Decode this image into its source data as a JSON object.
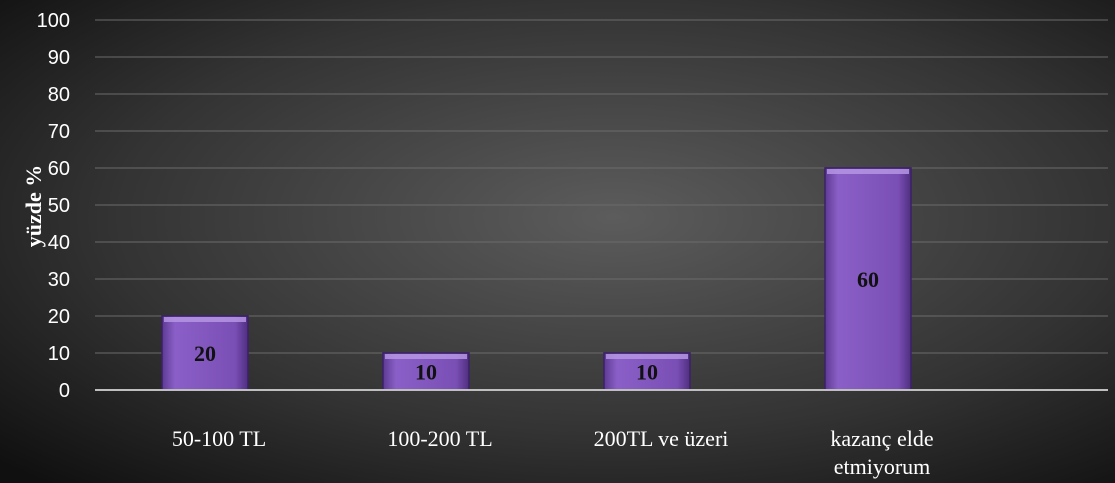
{
  "chart_data": {
    "type": "bar",
    "title": "",
    "xlabel": "",
    "ylabel": "yüzde %",
    "ylim": [
      0,
      100
    ],
    "yticks": [
      0,
      10,
      20,
      30,
      40,
      50,
      60,
      70,
      80,
      90,
      100
    ],
    "categories": [
      "50-100 TL",
      "100-200 TL",
      "200TL ve üzeri",
      "kazanç elde etmiyorum"
    ],
    "values": [
      20,
      10,
      10,
      60
    ],
    "data_labels": [
      "20",
      "10",
      "10",
      "60"
    ],
    "grid": true,
    "legend": "none",
    "colors": {
      "background_center": "#5c5c5c",
      "background_edge": "#101010",
      "bar_fill": "#7e52b8",
      "bar_top": "#b595e3",
      "bar_stroke": "#3c2168",
      "grid": "#6b6b6b",
      "axis": "#bfbfbf",
      "text": "#ffffff",
      "data_label": "#111111"
    }
  }
}
